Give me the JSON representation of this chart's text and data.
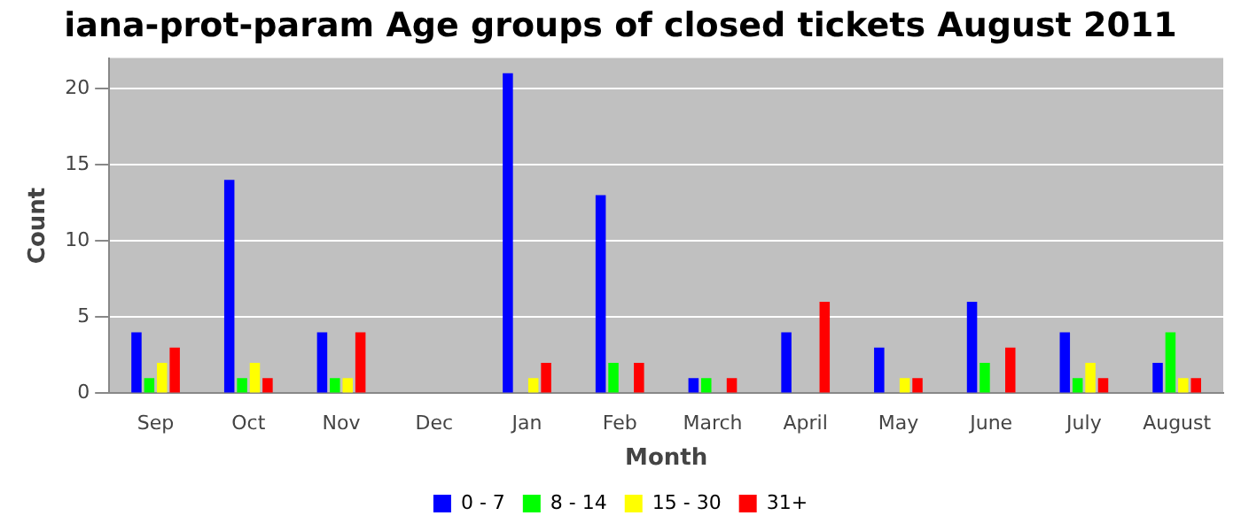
{
  "chart_data": {
    "type": "bar",
    "title": "iana-prot-param Age groups of closed tickets August 2011",
    "xlabel": "Month",
    "ylabel": "Count",
    "categories": [
      "Sep",
      "Oct",
      "Nov",
      "Dec",
      "Jan",
      "Feb",
      "March",
      "April",
      "May",
      "June",
      "July",
      "August"
    ],
    "series": [
      {
        "name": "0 - 7",
        "color": "#0000ff",
        "values": [
          4,
          14,
          4,
          0,
          21,
          13,
          1,
          4,
          3,
          6,
          4,
          2
        ]
      },
      {
        "name": "8 - 14",
        "color": "#00ff00",
        "values": [
          1,
          1,
          1,
          0,
          0,
          2,
          1,
          0,
          0,
          2,
          1,
          4
        ]
      },
      {
        "name": "15 - 30",
        "color": "#ffff00",
        "values": [
          2,
          2,
          1,
          0,
          1,
          0,
          0,
          0,
          1,
          0,
          2,
          1
        ]
      },
      {
        "name": "31+",
        "color": "#ff0000",
        "values": [
          3,
          1,
          4,
          0,
          2,
          2,
          1,
          6,
          1,
          3,
          1,
          1
        ]
      }
    ],
    "ylim": [
      0,
      22
    ],
    "yticks": [
      0,
      5,
      10,
      15,
      20
    ],
    "grid": "y",
    "legend": "bottom"
  }
}
